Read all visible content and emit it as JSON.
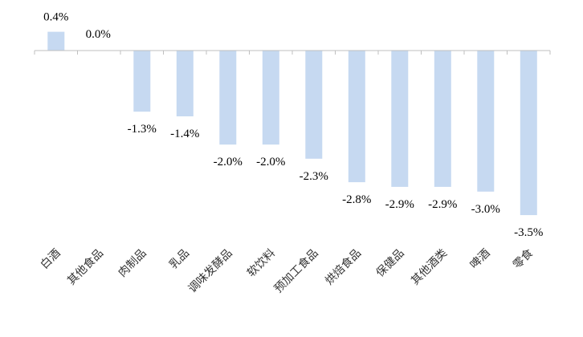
{
  "chart_data": {
    "type": "bar",
    "title": "",
    "xlabel": "",
    "ylabel": "",
    "ylim": [
      -4.0,
      0.6
    ],
    "grid": false,
    "legend": "none",
    "categories": [
      "白酒",
      "其他食品",
      "肉制品",
      "乳品",
      "调味发酵品",
      "软饮料",
      "预加工食品",
      "烘焙食品",
      "保健品",
      "其他酒类",
      "啤酒",
      "零食"
    ],
    "values": [
      0.4,
      0.0,
      -1.3,
      -1.4,
      -2.0,
      -2.0,
      -2.3,
      -2.8,
      -2.9,
      -2.9,
      -3.0,
      -3.5
    ],
    "value_labels": [
      "0.4%",
      "0.0%",
      "-1.3%",
      "-1.4%",
      "-2.0%",
      "-2.0%",
      "-2.3%",
      "-2.8%",
      "-2.9%",
      "-2.9%",
      "-3.0%",
      "-3.5%"
    ],
    "bar_color": "#c6d9f1",
    "axis_color": "#bfbfbf"
  }
}
